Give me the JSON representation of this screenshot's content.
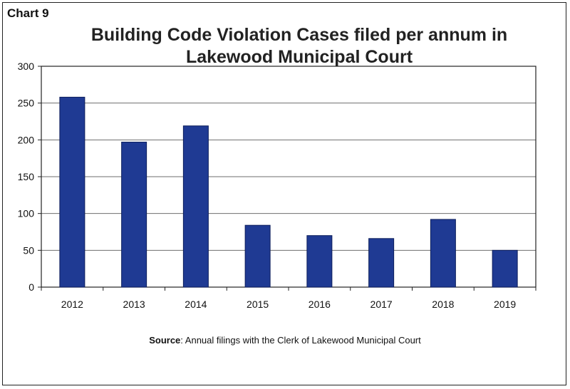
{
  "chart_label": "Chart 9",
  "source_label": "Source",
  "source_text": ": Annual filings with the Clerk of Lakewood Municipal Court",
  "chart_data": {
    "type": "bar",
    "title_line1": "Building Code Violation Cases filed per annum in",
    "title_line2": "Lakewood Municipal Court",
    "categories": [
      "2012",
      "2013",
      "2014",
      "2015",
      "2016",
      "2017",
      "2018",
      "2019"
    ],
    "values": [
      258,
      197,
      219,
      84,
      70,
      66,
      92,
      50
    ],
    "ylim": [
      0,
      300
    ],
    "yticks": [
      "0",
      "50",
      "100",
      "150",
      "200",
      "250",
      "300"
    ],
    "grid": true,
    "bar_color": "#1f3a93",
    "bar_edge_color": "#0d1e5c"
  }
}
